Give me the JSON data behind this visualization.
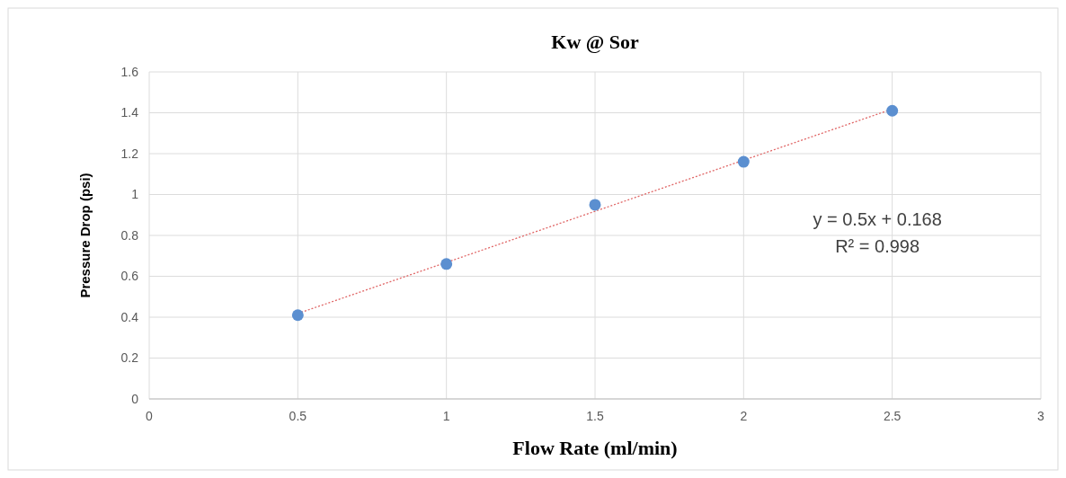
{
  "chart_data": {
    "type": "scatter",
    "title": "Kw @ Sor",
    "xlabel": "Flow Rate (ml/min)",
    "ylabel": "Pressure Drop (psi)",
    "xlim": [
      0,
      3
    ],
    "xticks": [
      0,
      0.5,
      1,
      1.5,
      2,
      2.5,
      3
    ],
    "ylim": [
      0,
      1.6
    ],
    "yticks": [
      0,
      0.2,
      0.4,
      0.6,
      0.8,
      1,
      1.2,
      1.4,
      1.6
    ],
    "grid": true,
    "series": [
      {
        "color": "#5b8fd0",
        "marker": "circle",
        "x": [
          0.5,
          1,
          1.5,
          2,
          2.5
        ],
        "values": [
          0.41,
          0.66,
          0.95,
          1.16,
          1.41
        ]
      },
      {
        "type": "line",
        "color": "#e06666",
        "marker": "none",
        "x": [
          0.5,
          2.5
        ],
        "values": [
          0.418,
          1.418
        ],
        "line_style": "dotted"
      }
    ],
    "annotations": [
      "y = 0.5x + 0.168",
      "R² = 0.998"
    ]
  }
}
